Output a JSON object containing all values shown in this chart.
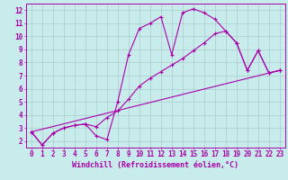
{
  "xlabel": "Windchill (Refroidissement éolien,°C)",
  "bg_color": "#c8ecec",
  "line_color": "#aa00aa",
  "grid_color": "#aacccc",
  "xlim": [
    -0.5,
    23.5
  ],
  "ylim": [
    1.5,
    12.5
  ],
  "xticks": [
    0,
    1,
    2,
    3,
    4,
    5,
    6,
    7,
    8,
    9,
    10,
    11,
    12,
    13,
    14,
    15,
    16,
    17,
    18,
    19,
    20,
    21,
    22,
    23
  ],
  "yticks": [
    2,
    3,
    4,
    5,
    6,
    7,
    8,
    9,
    10,
    11,
    12
  ],
  "line1_x": [
    0,
    1,
    2,
    3,
    4,
    5,
    6,
    7,
    8,
    9,
    10,
    11,
    12,
    13,
    14,
    15,
    16,
    17,
    18,
    19,
    20,
    21,
    22,
    23
  ],
  "line1_y": [
    2.7,
    1.7,
    2.6,
    3.0,
    3.2,
    3.3,
    2.4,
    2.1,
    5.0,
    8.6,
    10.6,
    11.0,
    11.5,
    8.6,
    11.8,
    12.1,
    11.8,
    11.3,
    10.4,
    9.5,
    7.4,
    8.9,
    7.2,
    7.4
  ],
  "line2_x": [
    0,
    1,
    2,
    3,
    4,
    5,
    6,
    7,
    8,
    9,
    10,
    11,
    12,
    13,
    14,
    15,
    16,
    17,
    18,
    19,
    20,
    21,
    22,
    23
  ],
  "line2_y": [
    2.7,
    1.7,
    2.6,
    3.0,
    3.2,
    3.3,
    3.1,
    3.8,
    4.3,
    5.2,
    6.2,
    6.8,
    7.3,
    7.8,
    8.3,
    8.9,
    9.5,
    10.2,
    10.4,
    9.5,
    7.4,
    8.9,
    7.2,
    7.4
  ],
  "line3_x": [
    0,
    23
  ],
  "line3_y": [
    2.7,
    7.4
  ],
  "fontsize_label": 6,
  "fontsize_tick": 5.5
}
